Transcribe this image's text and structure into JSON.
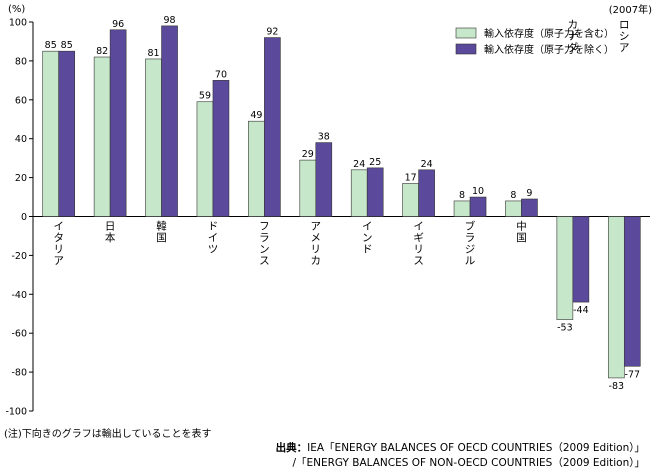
{
  "chart_data": {
    "type": "bar",
    "unit_label": "(%)",
    "year_label": "(2007年)",
    "categories": [
      "イタリア",
      "日本",
      "韓国",
      "ドイツ",
      "フランス",
      "アメリカ",
      "インド",
      "イギリス",
      "ブラジル",
      "中国",
      "カナダ",
      "ロシア"
    ],
    "series": [
      {
        "name": "輸入依存度（原子力を含む）",
        "color": "#c6e7c9",
        "values": [
          85,
          82,
          81,
          59,
          49,
          29,
          24,
          17,
          8,
          8,
          -53,
          -83
        ]
      },
      {
        "name": "輸入依存度（原子力を除く）",
        "color": "#5b4a9c",
        "values": [
          85,
          96,
          98,
          70,
          92,
          38,
          25,
          24,
          10,
          9,
          -44,
          -77
        ]
      }
    ],
    "ylim": [
      -100,
      100
    ],
    "yticks": [
      100,
      80,
      60,
      40,
      20,
      0,
      -20,
      -40,
      -60,
      -80,
      -100
    ],
    "grid": false,
    "legend_position": "top-right"
  },
  "footer": {
    "note": "(注)下向きのグラフは輸出していることを表す",
    "source_prefix": "出典：",
    "source_line1": "IEA「ENERGY BALANCES OF OECD COUNTRIES（2009 Edition）」",
    "source_line2": "/「ENERGY BALANCES OF NON-OECD COUNTRIES（2009 Edition）」"
  }
}
